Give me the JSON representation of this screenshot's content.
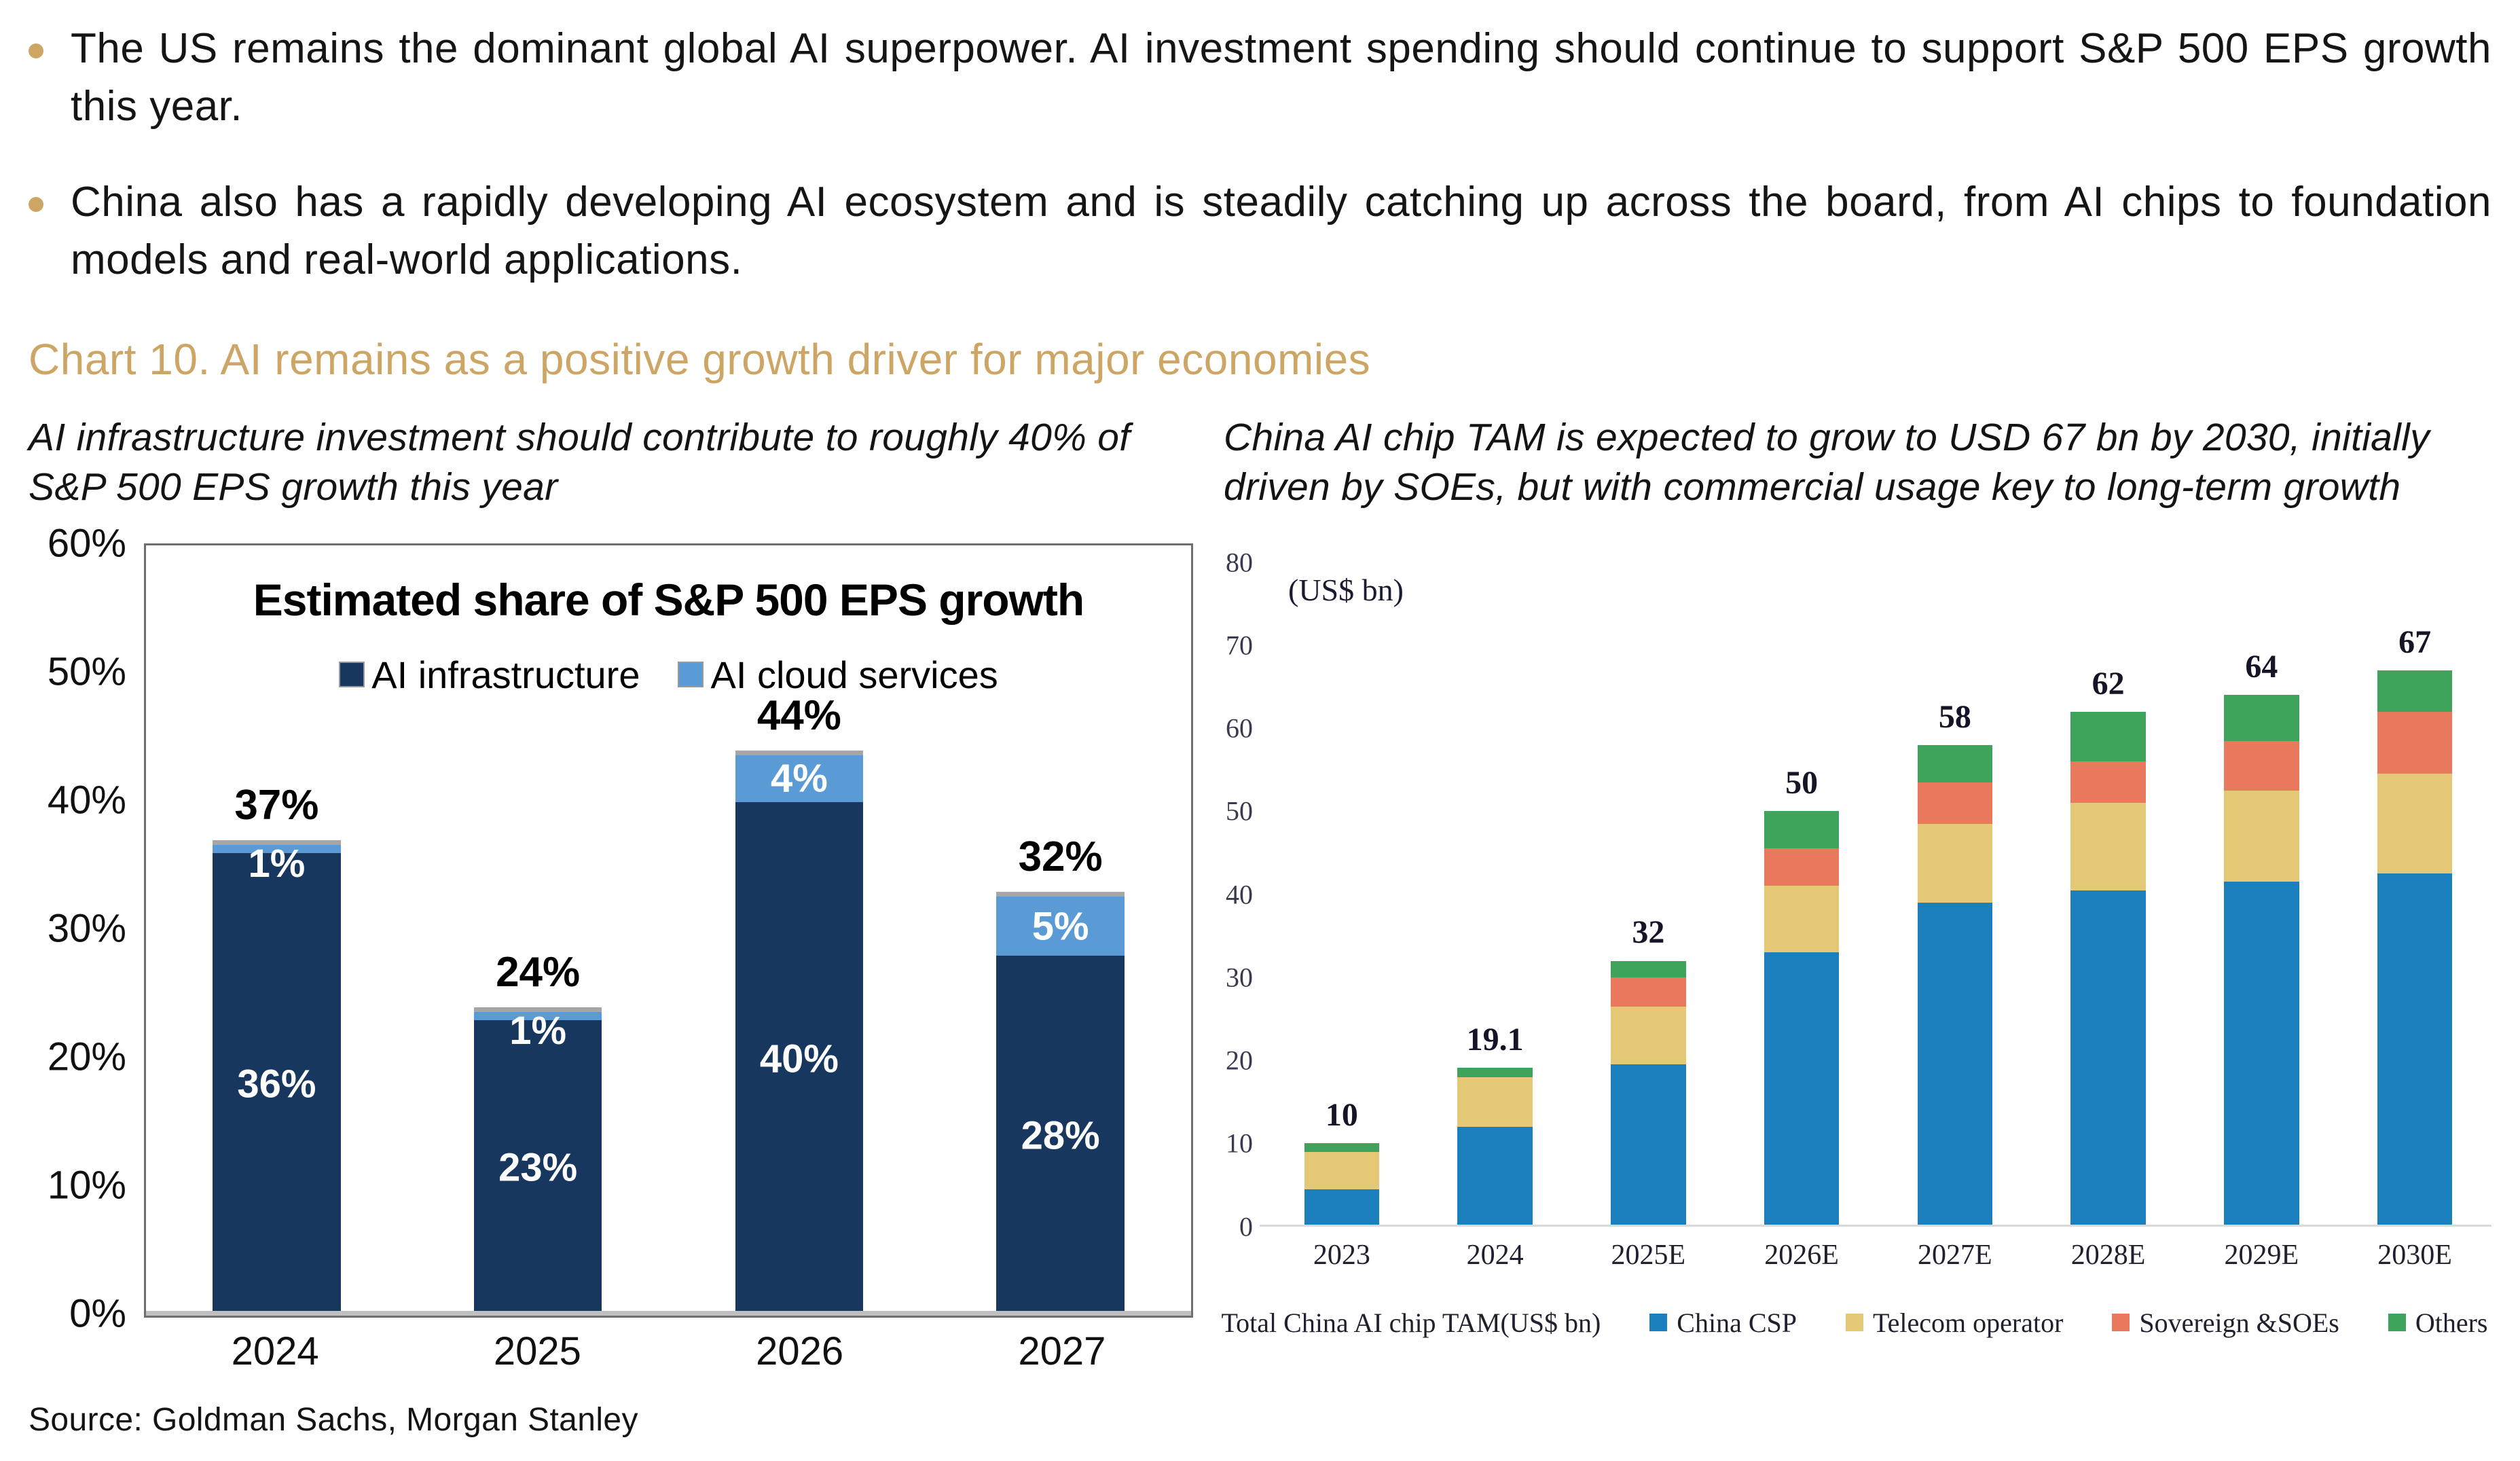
{
  "bullets": [
    {
      "text": "The US remains the dominant global AI superpower. AI investment spending should continue to support S&P 500 EPS growth this year."
    },
    {
      "text": "China also has a rapidly developing AI ecosystem and is steadily catching up across the board, from AI chips to foundation models and real-world applications."
    }
  ],
  "heading": "Chart 10. AI remains as a positive growth driver for major economies",
  "subtitles": {
    "left": "AI infrastructure investment should contribute to roughly 40% of S&P 500 EPS growth this year",
    "right": "China AI chip TAM is expected to grow to USD 67 bn by 2030, initially driven by SOEs, but with commercial usage key to long-term growth"
  },
  "source": "Source: Goldman Sachs, Morgan Stanley",
  "colors": {
    "accent_gold": "#CDA564",
    "navy": "#17375E",
    "light_blue": "#5B9BD5",
    "bar_cap_gray": "#A6A6A6",
    "csp_blue": "#1B7FBD",
    "telecom_tan": "#E5C876",
    "sovereign_orange": "#E8795C",
    "others_green": "#3EA45C"
  },
  "chart_data": [
    {
      "type": "bar",
      "stacked": true,
      "title": "Estimated share of S&P 500 EPS growth",
      "categories": [
        "2024",
        "2025",
        "2026",
        "2027"
      ],
      "series": [
        {
          "name": "AI infrastructure",
          "color": "#17375E",
          "values": [
            36,
            23,
            40,
            28
          ]
        },
        {
          "name": "AI cloud services",
          "color": "#5B9BD5",
          "values": [
            1,
            1,
            4,
            5
          ]
        }
      ],
      "segment_labels": [
        [
          "36%",
          "23%",
          "40%",
          "28%"
        ],
        [
          "1%",
          "1%",
          "4%",
          "5%"
        ]
      ],
      "totals": [
        "37%",
        "24%",
        "44%",
        "32%"
      ],
      "ylim": [
        0,
        60
      ],
      "yticks": [
        "0%",
        "10%",
        "20%",
        "30%",
        "40%",
        "50%",
        "60%"
      ],
      "grid": false,
      "legend_position": "top-center-inside"
    },
    {
      "type": "bar",
      "stacked": true,
      "title": "",
      "unit_label": "(US$ bn)",
      "categories": [
        "2023",
        "2024",
        "2025E",
        "2026E",
        "2027E",
        "2028E",
        "2029E",
        "2030E"
      ],
      "series": [
        {
          "name": "China CSP",
          "color": "#1B7FBD",
          "values": [
            4.5,
            12,
            19.5,
            33,
            39,
            40.5,
            41.5,
            42.5
          ]
        },
        {
          "name": "Telecom operator",
          "color": "#E5C876",
          "values": [
            4.5,
            6,
            7,
            8,
            9.5,
            10.5,
            11,
            12
          ]
        },
        {
          "name": "Sovereign &SOEs",
          "color": "#E8795C",
          "values": [
            0,
            0,
            3.5,
            4.5,
            5,
            5,
            6,
            7.5
          ]
        },
        {
          "name": "Others",
          "color": "#3EA45C",
          "values": [
            1,
            1.1,
            2,
            4.5,
            4.5,
            6,
            5.5,
            5
          ]
        }
      ],
      "totals": [
        "10",
        "19.1",
        "32",
        "50",
        "58",
        "62",
        "64",
        "67"
      ],
      "legend_prefix": "Total China AI chip TAM(US$ bn)",
      "ylim": [
        0,
        80
      ],
      "yticks": [
        "0",
        "10",
        "20",
        "30",
        "40",
        "50",
        "60",
        "70",
        "80"
      ],
      "grid": false,
      "legend_position": "bottom-center"
    }
  ]
}
